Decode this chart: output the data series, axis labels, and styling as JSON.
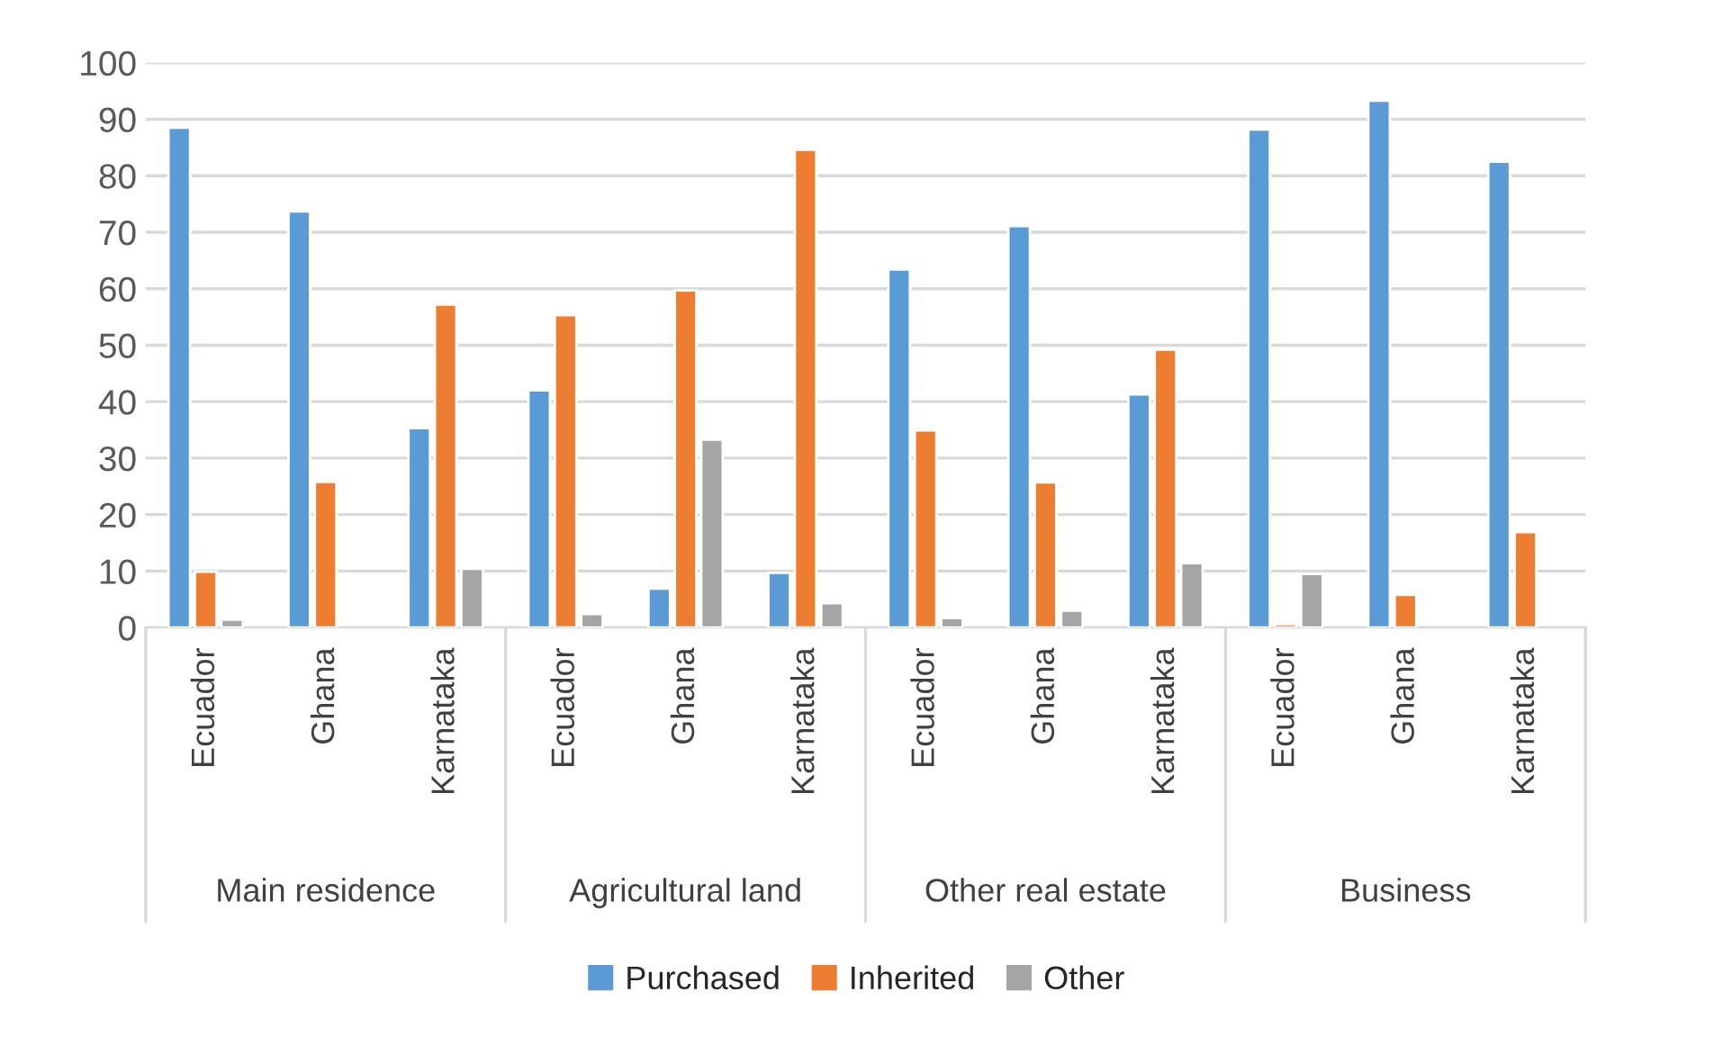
{
  "chart_data": {
    "type": "bar",
    "categories": [
      "Ecuador",
      "Ghana",
      "Karnataka",
      "Ecuador",
      "Ghana",
      "Karnataka",
      "Ecuador",
      "Ghana",
      "Karnataka",
      "Ecuador",
      "Ghana",
      "Karnataka"
    ],
    "annotations": [
      "Main residence",
      "Agricultural land",
      "Other real estate",
      "Business"
    ],
    "series": [
      {
        "name": "Purchased",
        "color": "#5b9bd5",
        "values": [
          88.5,
          73.7,
          35.3,
          42.0,
          6.9,
          9.7,
          63.4,
          71.1,
          41.3,
          88.2,
          93.3,
          82.5
        ]
      },
      {
        "name": "Inherited",
        "color": "#ed7d31",
        "values": [
          9.9,
          25.8,
          57.2,
          55.3,
          59.7,
          84.6,
          34.9,
          25.7,
          49.2,
          0.6,
          5.8,
          16.9
        ]
      },
      {
        "name": "Other",
        "color": "#a5a5a5",
        "values": [
          1.4,
          null,
          10.4,
          2.4,
          33.3,
          4.3,
          1.7,
          3.0,
          11.4,
          9.5,
          null,
          null
        ]
      }
    ],
    "ylim": [
      0,
      100
    ],
    "yticks": [
      0,
      10,
      20,
      30,
      40,
      50,
      60,
      70,
      80,
      90,
      100
    ],
    "grid": "y",
    "legend": "bottom"
  }
}
